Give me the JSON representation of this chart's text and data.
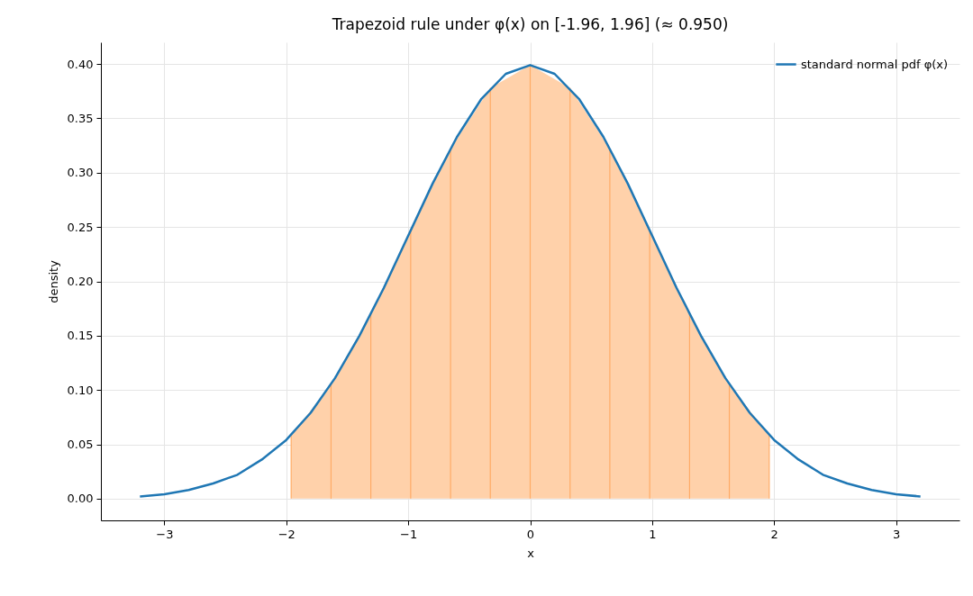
{
  "chart_data": {
    "type": "line",
    "title": "Trapezoid rule under φ(x) on [-1.96, 1.96]  (≈ 0.950)",
    "xlabel": "x",
    "ylabel": "density",
    "xlim": [
      -3.52,
      3.52
    ],
    "ylim": [
      -0.02,
      0.42
    ],
    "xticks": [
      {
        "value": -3,
        "label": "−3"
      },
      {
        "value": -2,
        "label": "−2"
      },
      {
        "value": -1,
        "label": "−1"
      },
      0,
      1,
      2,
      3
    ],
    "yticks": [
      {
        "value": 0,
        "label": "0.00"
      },
      0.05,
      {
        "value": 0.1,
        "label": "0.10"
      },
      0.15,
      {
        "value": 0.2,
        "label": "0.20"
      },
      0.25,
      {
        "value": 0.3,
        "label": "0.30"
      },
      0.35,
      {
        "value": 0.4,
        "label": "0.40"
      }
    ],
    "grid": true,
    "legend": "top right",
    "line_style": "solid",
    "marker": "none",
    "series": [
      {
        "type": "area",
        "color": "#ffd1aa",
        "x": [
          -1.96,
          -1.633,
          -1.307,
          -0.98,
          -0.653,
          -0.327,
          0,
          0.327,
          0.653,
          0.98,
          1.307,
          1.633,
          1.96
        ],
        "values": [
          0.058,
          0.105,
          0.17,
          0.247,
          0.322,
          0.378,
          0.399,
          0.378,
          0.322,
          0.247,
          0.17,
          0.105,
          0.058
        ]
      },
      {
        "type": "bar",
        "color": "#ffab66",
        "x": [
          -1.96,
          -1.633,
          -1.307,
          -0.98,
          -0.653,
          -0.327,
          0,
          0.327,
          0.653,
          0.98,
          1.307,
          1.633,
          1.96
        ],
        "values": [
          0.058,
          0.105,
          0.17,
          0.247,
          0.322,
          0.378,
          0.399,
          0.378,
          0.322,
          0.247,
          0.17,
          0.105,
          0.058
        ]
      },
      {
        "name": "standard normal pdf φ(x)",
        "color": "#1f77b4",
        "x": [
          -3.2,
          -3.0,
          -2.8,
          -2.6,
          -2.4,
          -2.2,
          -2.0,
          -1.8,
          -1.6,
          -1.4,
          -1.2,
          -1.0,
          -0.8,
          -0.6,
          -0.4,
          -0.2,
          0,
          0.2,
          0.4,
          0.6,
          0.8,
          1.0,
          1.2,
          1.4,
          1.6,
          1.8,
          2.0,
          2.2,
          2.4,
          2.6,
          2.8,
          3.0,
          3.2
        ],
        "values": [
          0.002,
          0.004,
          0.008,
          0.014,
          0.022,
          0.036,
          0.054,
          0.079,
          0.111,
          0.15,
          0.194,
          0.242,
          0.29,
          0.333,
          0.368,
          0.391,
          0.399,
          0.391,
          0.368,
          0.333,
          0.29,
          0.242,
          0.194,
          0.15,
          0.111,
          0.079,
          0.054,
          0.036,
          0.022,
          0.014,
          0.008,
          0.004,
          0.002
        ]
      }
    ]
  }
}
